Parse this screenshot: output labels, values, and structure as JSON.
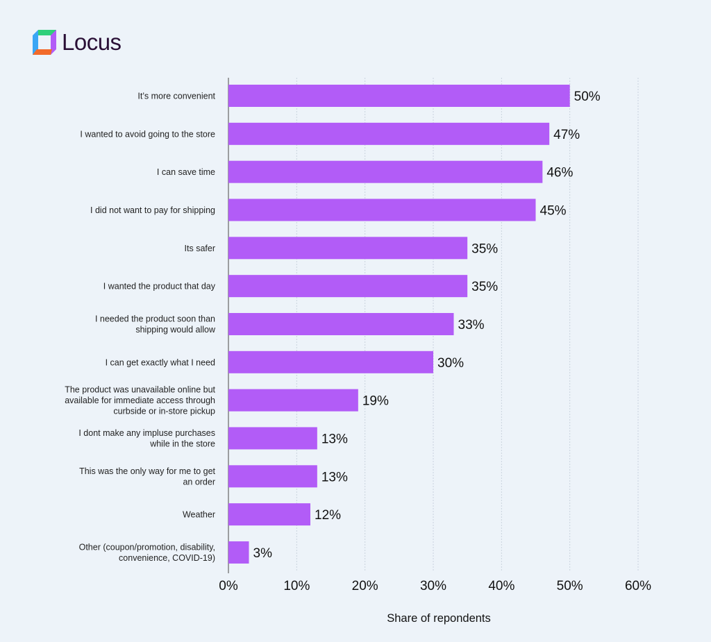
{
  "brand": {
    "name": "Locus",
    "colors": [
      "#3aa6f5",
      "#2fd07a",
      "#b25cf7",
      "#f26a2a"
    ]
  },
  "chart_data": {
    "type": "bar",
    "orientation": "horizontal",
    "categories": [
      [
        "It’s more convenient"
      ],
      [
        "I wanted to avoid going to the store"
      ],
      [
        "I can save time"
      ],
      [
        "I did not want to pay for shipping"
      ],
      [
        "Its safer"
      ],
      [
        "I wanted the product that day"
      ],
      [
        "I needed the product soon than",
        "shipping would allow"
      ],
      [
        "I can get exactly what I need"
      ],
      [
        "The product was unavailable online but",
        "available for immediate access through",
        "curbside or in-store pickup"
      ],
      [
        "I dont make any impluse purchases",
        "while in the store"
      ],
      [
        "This was the only way for me to get",
        "an order"
      ],
      [
        "Weather"
      ],
      [
        "Other (coupon/promotion, disability,",
        "convenience, COVID-19)"
      ]
    ],
    "values": [
      50,
      47,
      46,
      45,
      35,
      35,
      33,
      30,
      19,
      13,
      13,
      12,
      3
    ],
    "data_labels": [
      "50%",
      "47%",
      "46%",
      "45%",
      "35%",
      "35%",
      "33%",
      "30%",
      "19%",
      "13%",
      "13%",
      "12%",
      "3%"
    ],
    "xlabel": "Share of repondents",
    "xlim": [
      0,
      60
    ],
    "xticks": [
      "0%",
      "10%",
      "20%",
      "30%",
      "40%",
      "50%",
      "60%"
    ],
    "grid": "vertical dotted",
    "bar_color": "#b25cf7"
  }
}
